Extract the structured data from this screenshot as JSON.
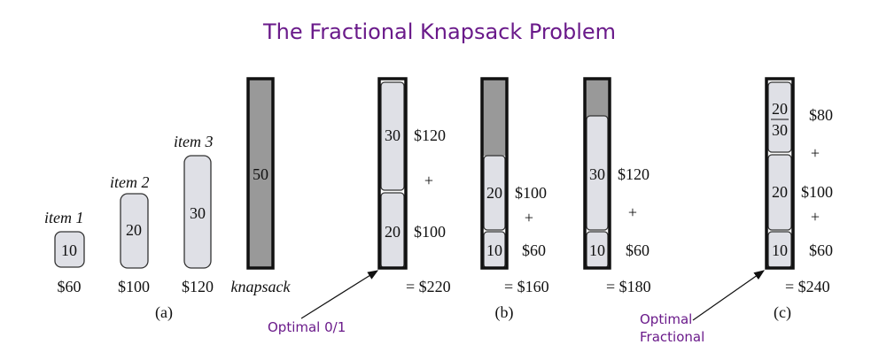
{
  "title": "The Fractional Knapsack Problem",
  "items": [
    {
      "label": "item 1",
      "weight": "10",
      "value": "$60"
    },
    {
      "label": "item 2",
      "weight": "20",
      "value": "$100"
    },
    {
      "label": "item 3",
      "weight": "30",
      "value": "$120"
    }
  ],
  "knapsack": {
    "capacity": "50",
    "label": "knapsack"
  },
  "panel_labels": {
    "a": "(a)",
    "b": "(b)",
    "c": "(c)"
  },
  "solutions": [
    {
      "segments": [
        "30",
        "20"
      ],
      "values": [
        "$120",
        "+",
        "$100"
      ],
      "total": "= $220"
    },
    {
      "segments": [
        "20",
        "10"
      ],
      "values": [
        "$100",
        "+",
        "$60"
      ],
      "total": "= $160"
    },
    {
      "segments": [
        "30",
        "10"
      ],
      "values": [
        "$120",
        "+",
        "$60"
      ],
      "total": "= $180"
    },
    {
      "segments": [
        "20/30",
        "20",
        "10"
      ],
      "fraction": {
        "num": "20",
        "den": "30"
      },
      "values": [
        "$80",
        "+",
        "$100",
        "+",
        "$60"
      ],
      "total": "= $240"
    }
  ],
  "annotations": {
    "optimal_01": "Optimal 0/1",
    "optimal_fractional_1": "Optimal",
    "optimal_fractional_2": "Fractional"
  },
  "colors": {
    "title": "#6a1a8a",
    "item_fill": "#dfe0e6",
    "knapsack_fill": "#999999"
  }
}
